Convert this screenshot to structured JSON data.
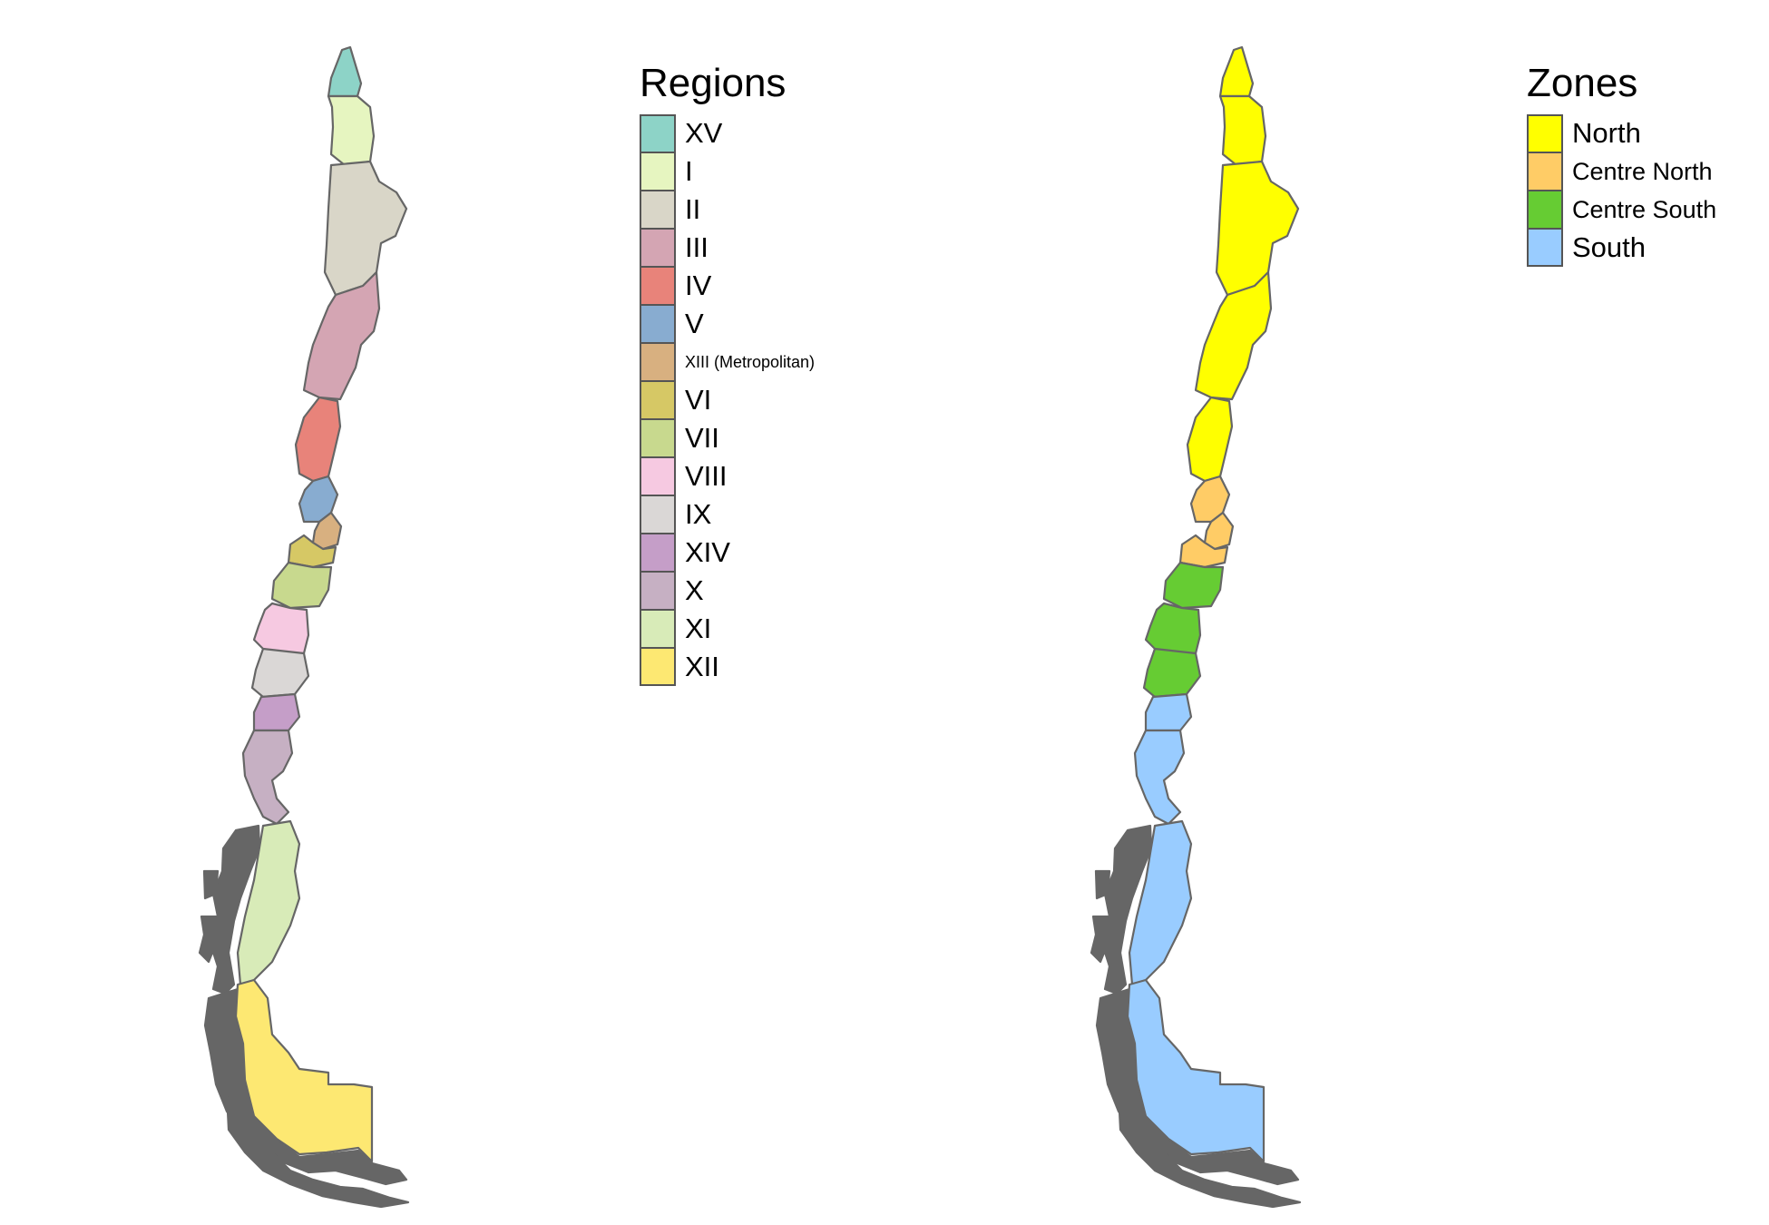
{
  "regions_legend": {
    "title": "Regions",
    "items": [
      {
        "label": "XV",
        "color": "#8dd3c7"
      },
      {
        "label": "I",
        "color": "#e6f5c0"
      },
      {
        "label": "II",
        "color": "#d9d6c8"
      },
      {
        "label": "III",
        "color": "#d4a5b3"
      },
      {
        "label": "IV",
        "color": "#e8837a"
      },
      {
        "label": "V",
        "color": "#88acd0"
      },
      {
        "label": "XIII (Metropolitan)",
        "color": "#d8b080"
      },
      {
        "label": "VI",
        "color": "#d6c865"
      },
      {
        "label": "VII",
        "color": "#c8d98e"
      },
      {
        "label": "VIII",
        "color": "#f6c9e1"
      },
      {
        "label": "IX",
        "color": "#dad7d6"
      },
      {
        "label": "XIV",
        "color": "#c59ec8"
      },
      {
        "label": "X",
        "color": "#c6b0c3"
      },
      {
        "label": "XI",
        "color": "#d8ebb8"
      },
      {
        "label": "XII",
        "color": "#fde872"
      }
    ]
  },
  "zones_legend": {
    "title": "Zones",
    "items": [
      {
        "label": "North",
        "color": "#ffff00"
      },
      {
        "label": "Centre North",
        "color": "#ffcc66"
      },
      {
        "label": "Centre South",
        "color": "#66cc33"
      },
      {
        "label": "South",
        "color": "#99ccff"
      }
    ]
  },
  "archipelago_color": "#666666",
  "border_color": "#666666"
}
